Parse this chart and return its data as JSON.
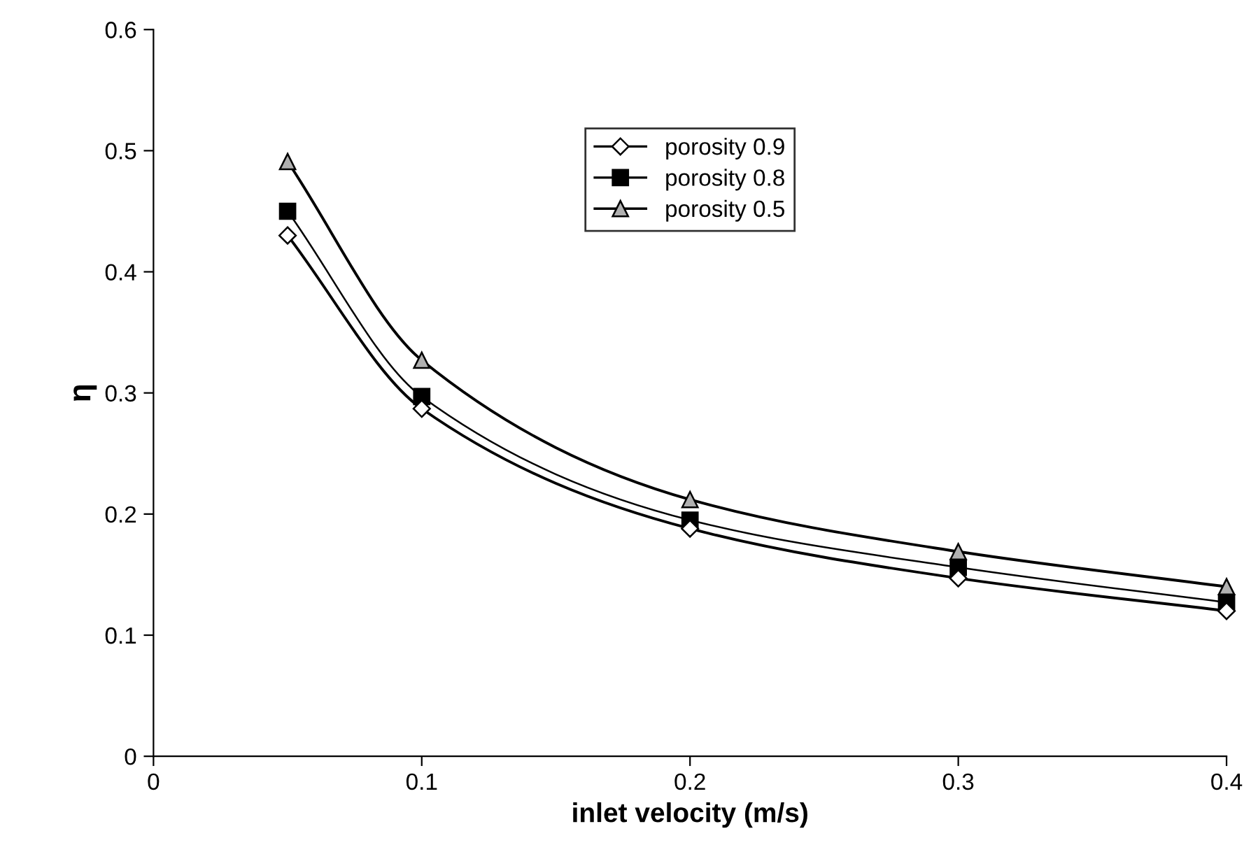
{
  "chart_data": {
    "type": "line",
    "xlabel": "inlet velocity (m/s)",
    "ylabel": "η",
    "x": [
      0.05,
      0.1,
      0.2,
      0.3,
      0.4
    ],
    "series": [
      {
        "name": "porosity 0.9",
        "color": "#000000",
        "marker": "diamond",
        "values": [
          0.43,
          0.287,
          0.188,
          0.147,
          0.12
        ]
      },
      {
        "name": "porosity 0.8",
        "color": "#000000",
        "marker": "square",
        "values": [
          0.45,
          0.297,
          0.195,
          0.156,
          0.127
        ]
      },
      {
        "name": "porosity 0.5",
        "color": "#000000",
        "marker": "triangle",
        "values": [
          0.491,
          0.327,
          0.212,
          0.169,
          0.14
        ]
      }
    ],
    "xlim": [
      0,
      0.4
    ],
    "xticks": [
      0,
      0.1,
      0.2,
      0.3,
      0.4
    ],
    "ylim": [
      0,
      0.6
    ],
    "yticks": [
      0,
      0.1,
      0.2,
      0.3,
      0.4,
      0.5,
      0.6
    ],
    "grid": false,
    "legend": "top",
    "line_style": "solid"
  }
}
